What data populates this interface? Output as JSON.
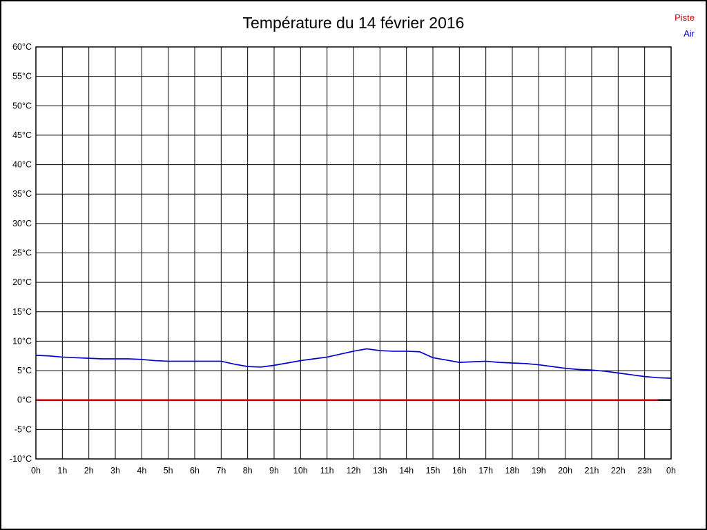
{
  "page": {
    "background": "#ffffff",
    "border_color": "#000000"
  },
  "legend": {
    "position": "top-right",
    "entries": [
      {
        "label": "Piste",
        "color": "#cc0000"
      },
      {
        "label": "Air",
        "color": "#0000cc"
      }
    ]
  },
  "chart_data": {
    "type": "line",
    "title": "Température du 14 février 2016",
    "xlabel": "",
    "ylabel": "",
    "xlim": [
      0,
      24
    ],
    "ylim": [
      -10,
      60
    ],
    "y_tick_step": 5,
    "grid": true,
    "legend_position": "top-right",
    "x_tick_labels": [
      "0h",
      "1h",
      "2h",
      "3h",
      "4h",
      "5h",
      "6h",
      "7h",
      "8h",
      "9h",
      "10h",
      "11h",
      "12h",
      "13h",
      "14h",
      "15h",
      "16h",
      "17h",
      "18h",
      "19h",
      "20h",
      "21h",
      "22h",
      "23h",
      "0h"
    ],
    "y_tick_labels": [
      "60°C",
      "55°C",
      "50°C",
      "45°C",
      "40°C",
      "35°C",
      "30°C",
      "25°C",
      "20°C",
      "15°C",
      "10°C",
      "5°C",
      "0°C",
      "-5°C",
      "-10°C"
    ],
    "baseline": {
      "y": 0,
      "color": "#000000",
      "stroke_width": 2.4
    },
    "series": [
      {
        "name": "Piste",
        "color": "#cc0000",
        "stroke_width": 2.4,
        "x": [
          0,
          23.5
        ],
        "y": [
          0,
          0
        ]
      },
      {
        "name": "Air",
        "color": "#0000cc",
        "stroke_width": 1.7,
        "x": [
          0,
          0.5,
          1,
          1.5,
          2,
          2.5,
          3,
          3.5,
          4,
          4.5,
          5,
          5.5,
          6,
          6.5,
          7,
          7.5,
          8,
          8.5,
          9,
          9.5,
          10,
          10.5,
          11,
          11.5,
          12,
          12.5,
          13,
          13.5,
          14,
          14.5,
          15,
          15.5,
          16,
          16.5,
          17,
          17.5,
          18,
          18.5,
          19,
          19.5,
          20,
          20.5,
          21,
          21.5,
          22,
          22.5,
          23,
          23.5,
          24
        ],
        "y": [
          7.6,
          7.5,
          7.3,
          7.2,
          7.1,
          7.0,
          7.0,
          7.0,
          6.9,
          6.7,
          6.6,
          6.6,
          6.6,
          6.6,
          6.6,
          6.1,
          5.7,
          5.6,
          5.9,
          6.3,
          6.7,
          7.0,
          7.3,
          7.8,
          8.3,
          8.7,
          8.4,
          8.3,
          8.3,
          8.2,
          7.2,
          6.8,
          6.4,
          6.5,
          6.6,
          6.4,
          6.3,
          6.2,
          6.0,
          5.7,
          5.4,
          5.2,
          5.1,
          4.9,
          4.6,
          4.3,
          4.0,
          3.8,
          3.7
        ]
      }
    ]
  }
}
